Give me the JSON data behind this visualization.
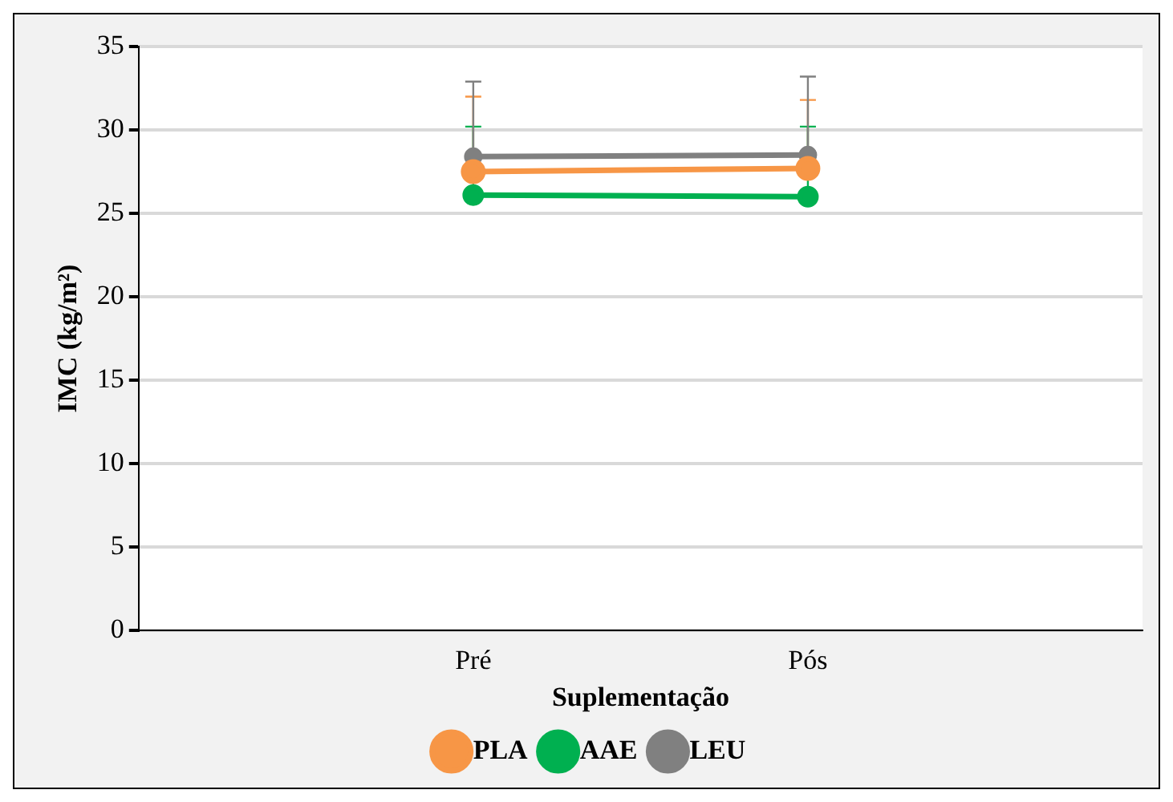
{
  "chart_data": {
    "type": "line",
    "categories": [
      null,
      "Pré",
      "Pós",
      null
    ],
    "xlabel": "Suplementação",
    "ylabel": "IMC (kg/m²)",
    "ylim": [
      0,
      35
    ],
    "yticks": [
      0,
      5,
      10,
      15,
      20,
      25,
      30,
      35
    ],
    "grid": "y",
    "legend": "bottom",
    "marker": "circle",
    "line_style": "solid",
    "series": [
      {
        "name": "PLA",
        "color": "#f79646",
        "values": [
          null,
          27.5,
          27.7,
          null
        ],
        "errors": [
          null,
          [
            27.5,
            32.0
          ],
          [
            27.7,
            31.8
          ],
          null
        ]
      },
      {
        "name": "AAE",
        "color": "#00b050",
        "values": [
          null,
          26.1,
          26.0,
          null
        ],
        "errors": [
          null,
          [
            26.1,
            30.2
          ],
          [
            26.0,
            30.2
          ],
          null
        ]
      },
      {
        "name": "LEU",
        "color": "#808080",
        "values": [
          null,
          28.4,
          28.5,
          null
        ],
        "errors": [
          null,
          [
            28.4,
            32.9
          ],
          [
            28.5,
            33.2
          ],
          null
        ]
      }
    ]
  }
}
